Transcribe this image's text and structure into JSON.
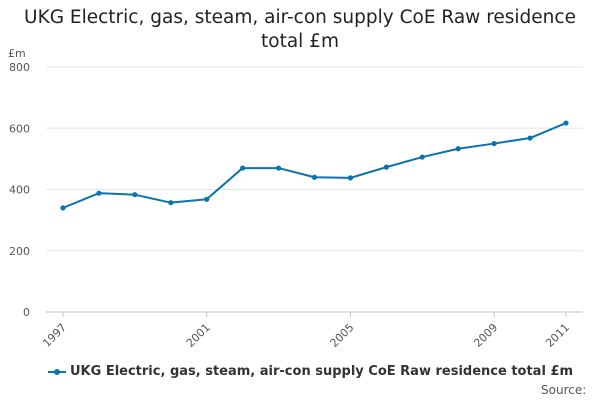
{
  "chart_data": {
    "type": "line",
    "title": "UKG Electric, gas, steam, air-con supply CoE Raw residence total £m",
    "ylabel": "£m",
    "xlabel": "",
    "ylim": [
      0,
      800
    ],
    "yticks": [
      0,
      200,
      400,
      600,
      800
    ],
    "xticks": [
      1997,
      2001,
      2005,
      2009,
      2011
    ],
    "x": [
      1997,
      1998,
      1999,
      2000,
      2001,
      2002,
      2003,
      2004,
      2005,
      2006,
      2007,
      2008,
      2009,
      2010,
      2011
    ],
    "series": [
      {
        "name": "UKG Electric, gas, steam, air-con supply CoE Raw residence total £m",
        "values": [
          340,
          388,
          383,
          357,
          368,
          470,
          470,
          440,
          438,
          473,
          506,
          533,
          550,
          568,
          617
        ]
      }
    ],
    "grid": true,
    "legend_position": "bottom"
  },
  "title_lines": [
    "UKG Electric, gas, steam, air-con supply CoE Raw residence",
    "total £m"
  ],
  "legend_label": "UKG Electric, gas, steam, air-con supply CoE Raw residence total £m",
  "source_label": "Source:",
  "colors": {
    "series": "#0a73b0",
    "grid": "#e6e6e6",
    "axis": "#c0c0c0"
  }
}
